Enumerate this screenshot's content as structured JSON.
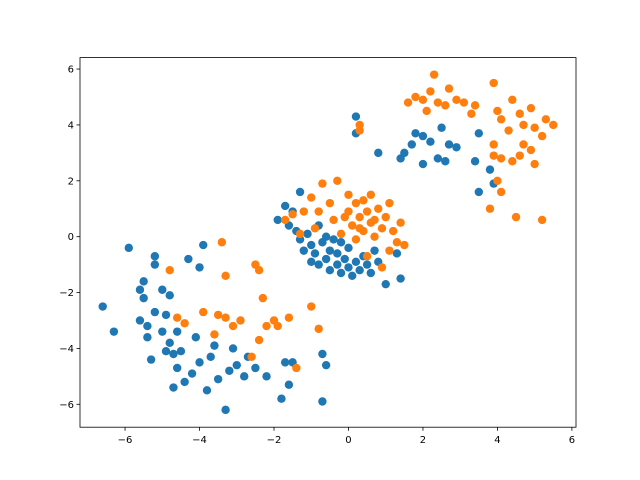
{
  "chart_data": {
    "type": "scatter",
    "xlim": [
      -7.21,
      6.11
    ],
    "ylim": [
      -6.82,
      6.41
    ],
    "xticks": [
      {
        "value": -6,
        "label": "−6"
      },
      {
        "value": -4,
        "label": "−4"
      },
      {
        "value": -2,
        "label": "−2"
      },
      0,
      2,
      4,
      6
    ],
    "yticks": [
      {
        "value": -6,
        "label": "−6"
      },
      {
        "value": -4,
        "label": "−4"
      },
      {
        "value": -2,
        "label": "−2"
      },
      0,
      2,
      4,
      6
    ],
    "series": [
      {
        "color": "#1f77b4",
        "x": [
          -6.6,
          -6.3,
          -5.9,
          -5.6,
          -5.5,
          -5.5,
          -5.4,
          -5.4,
          -5.3,
          -5.2,
          -5.2,
          -5.2,
          -5.0,
          -5.0,
          -4.9,
          -4.9,
          -4.8,
          -4.8,
          -4.7,
          -4.7,
          -4.6,
          -4.5,
          -4.4,
          -4.3,
          -4.2,
          -4.1,
          -4.0,
          -4.0,
          -3.9,
          -3.8,
          -3.7,
          -3.6,
          -3.5,
          -3.3,
          -3.2,
          -3.0,
          -2.8,
          -2.7,
          -2.5,
          -2.2,
          -1.8,
          -1.7,
          -1.6,
          -1.5,
          -0.7,
          -0.6,
          -0.7,
          -4.6,
          -5.6,
          -3.1,
          -1.9,
          -1.7,
          -1.6,
          -1.4,
          -1.3,
          -1.2,
          -1.1,
          -1.0,
          -1.0,
          -0.9,
          -0.8,
          -0.8,
          -0.7,
          -0.6,
          -0.6,
          -0.5,
          -0.5,
          -0.4,
          -0.3,
          -0.3,
          -0.2,
          -0.2,
          -0.1,
          0.0,
          0.0,
          0.1,
          0.2,
          0.3,
          0.4,
          0.5,
          0.6,
          0.8,
          1.0,
          1.4,
          1.3,
          -1.3,
          -1.5,
          0.7,
          0.2,
          0.2,
          0.8,
          1.4,
          1.5,
          1.7,
          1.8,
          2.0,
          2.0,
          2.2,
          2.4,
          2.5,
          2.6,
          2.7,
          2.9,
          3.4,
          3.5,
          3.5,
          3.8,
          3.9
        ],
        "values": [
          -2.5,
          -3.4,
          -0.4,
          -1.9,
          -1.6,
          -2.2,
          -3.2,
          -3.6,
          -4.4,
          -2.7,
          -1.0,
          -0.7,
          -1.9,
          -3.4,
          -4.1,
          -2.8,
          -2.1,
          -3.8,
          -4.2,
          -5.4,
          -3.4,
          -4.1,
          -5.2,
          -0.8,
          -4.9,
          -3.6,
          -4.5,
          -1.1,
          -0.3,
          -5.5,
          -4.3,
          -3.9,
          -5.1,
          -6.2,
          -4.8,
          -4.6,
          -5.0,
          -4.3,
          -4.7,
          -5.0,
          -5.8,
          -4.5,
          -5.3,
          -4.5,
          -4.2,
          -4.6,
          -5.9,
          -4.7,
          -3.0,
          -4.0,
          0.6,
          1.1,
          0.4,
          0.2,
          -0.1,
          -0.5,
          0.1,
          -0.3,
          -0.9,
          -0.6,
          0.4,
          -1.0,
          -0.2,
          -0.8,
          0.0,
          -1.2,
          -0.5,
          -0.1,
          -1.0,
          -0.6,
          -1.3,
          -0.2,
          -0.8,
          -1.1,
          -0.4,
          -1.4,
          -0.9,
          -1.2,
          -0.7,
          -1.0,
          -1.3,
          -0.9,
          -1.7,
          -1.5,
          -0.6,
          1.6,
          0.9,
          -0.5,
          4.3,
          3.7,
          3.0,
          2.8,
          3.0,
          3.3,
          3.7,
          3.6,
          2.6,
          3.4,
          2.8,
          3.9,
          2.7,
          3.3,
          3.2,
          2.7,
          3.7,
          1.6,
          2.4,
          1.9
        ]
      },
      {
        "color": "#ff7f0e",
        "x": [
          -1.7,
          -1.5,
          -1.3,
          -1.2,
          -1.0,
          -0.9,
          -0.8,
          -0.7,
          -0.5,
          -0.4,
          -0.3,
          -0.2,
          0.0,
          0.0,
          0.1,
          0.2,
          0.2,
          0.3,
          0.4,
          0.4,
          0.5,
          0.6,
          0.6,
          0.7,
          0.8,
          0.9,
          1.0,
          1.1,
          1.1,
          1.2,
          1.3,
          1.4,
          1.5,
          0.9,
          0.5,
          -0.1,
          0.3,
          0.7,
          2.3,
          2.4,
          2.0,
          2.2,
          1.6,
          1.8,
          2.6,
          2.7,
          2.9,
          3.1,
          3.3,
          3.4,
          3.9,
          4.0,
          4.1,
          4.3,
          4.4,
          4.6,
          4.7,
          4.9,
          5.0,
          5.2,
          5.3,
          5.5,
          3.9,
          4.1,
          4.4,
          4.6,
          4.9,
          5.0,
          3.8,
          4.0,
          4.1,
          4.5,
          5.2,
          3.9,
          0.3,
          0.3,
          2.1,
          4.7,
          -4.8,
          -4.6,
          -4.4,
          -3.9,
          -3.6,
          -3.5,
          -3.4,
          -3.3,
          -3.1,
          -2.9,
          -2.6,
          -2.5,
          -2.4,
          -2.3,
          -2.2,
          -2.0,
          -1.9,
          -1.6,
          -1.4,
          -1.0,
          -0.8,
          -3.3,
          -2.4
        ],
        "values": [
          0.6,
          0.8,
          0.1,
          0.9,
          1.4,
          0.3,
          0.9,
          1.9,
          1.2,
          0.6,
          2.0,
          0.1,
          0.9,
          1.5,
          0.4,
          1.2,
          -0.1,
          0.7,
          1.3,
          0.2,
          0.9,
          0.5,
          1.5,
          0.0,
          1.0,
          0.3,
          0.7,
          -0.5,
          1.2,
          0.2,
          -0.2,
          0.5,
          -0.3,
          -1.1,
          -0.7,
          0.7,
          0.3,
          0.6,
          5.8,
          4.8,
          4.9,
          5.2,
          4.8,
          5.0,
          4.7,
          5.3,
          4.9,
          4.8,
          4.4,
          4.7,
          5.5,
          4.5,
          4.2,
          3.8,
          4.9,
          4.4,
          4.0,
          4.6,
          3.9,
          3.6,
          4.2,
          4.0,
          3.3,
          2.8,
          2.7,
          2.9,
          3.1,
          2.6,
          1.0,
          2.0,
          1.6,
          0.7,
          0.6,
          2.9,
          3.8,
          4.0,
          4.5,
          3.3,
          -1.2,
          -2.9,
          -3.1,
          -2.7,
          -3.5,
          -2.8,
          -0.2,
          -1.4,
          -3.2,
          -3.0,
          -4.3,
          -1.0,
          -1.2,
          -2.2,
          -3.2,
          -3.0,
          -3.2,
          -2.9,
          -4.7,
          -2.5,
          -3.3,
          -2.9,
          -3.7
        ]
      }
    ]
  }
}
